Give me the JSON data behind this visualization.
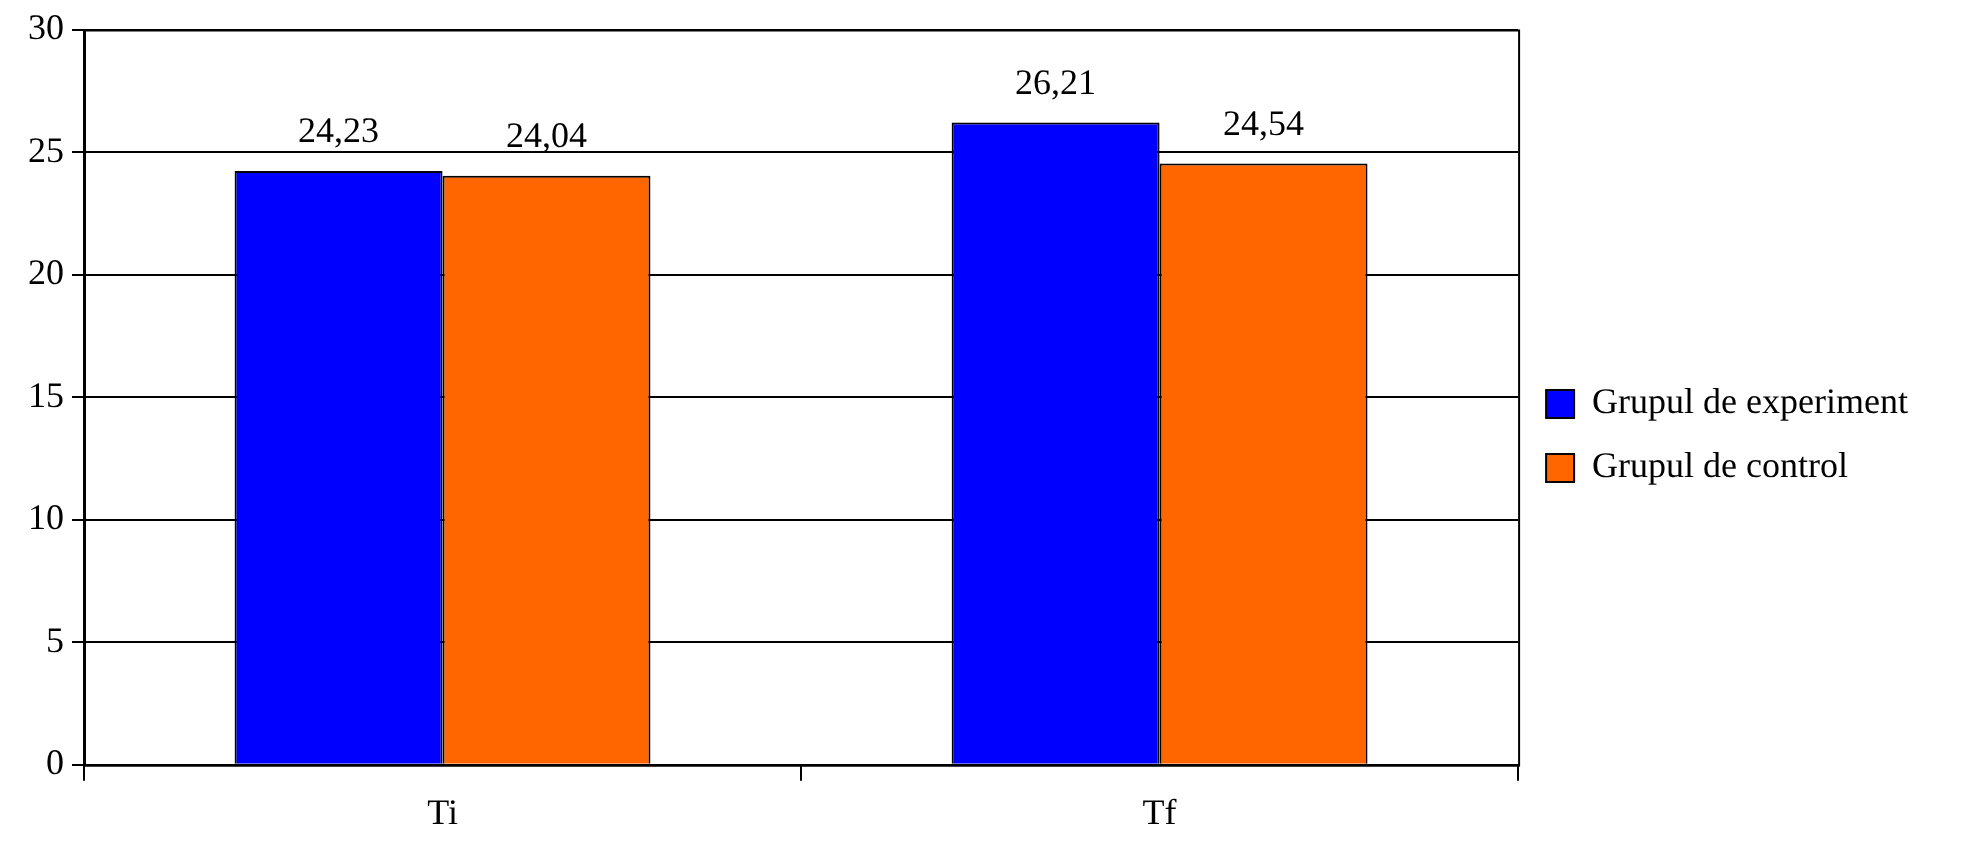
{
  "chart_data": {
    "type": "bar",
    "categories": [
      "Ti",
      "Tf"
    ],
    "series": [
      {
        "name": "Grupul de experiment",
        "color": "#0000ff",
        "values": [
          24.23,
          26.21
        ],
        "value_labels": [
          "24,23",
          "26,21"
        ]
      },
      {
        "name": "Grupul de control",
        "color": "#ff6600",
        "values": [
          24.04,
          24.54
        ],
        "value_labels": [
          "24,04",
          "24,54"
        ]
      }
    ],
    "ylim": [
      0,
      30
    ],
    "yticks": [
      0,
      5,
      10,
      15,
      20,
      25,
      30
    ],
    "grid": "y",
    "legend": "right"
  }
}
